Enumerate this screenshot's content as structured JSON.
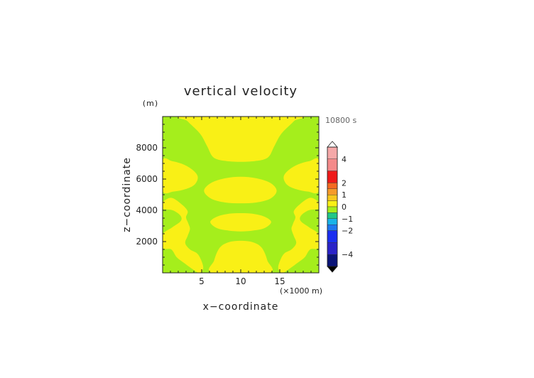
{
  "chart_data": {
    "type": "heatmap",
    "title": "vertical velocity",
    "xlabel": "x−coordinate",
    "ylabel": "z−coordinate",
    "y_unit": "(m)",
    "x_unit": "(×1000 m)",
    "time_label": "10800 s",
    "xlim": [
      0,
      20
    ],
    "ylim": [
      0,
      10000
    ],
    "x_ticks": [
      {
        "value": 5,
        "label": "5"
      },
      {
        "value": 10,
        "label": "10"
      },
      {
        "value": 15,
        "label": "15"
      }
    ],
    "y_ticks": [
      {
        "value": 2000,
        "label": "2000"
      },
      {
        "value": 4000,
        "label": "4000"
      },
      {
        "value": 6000,
        "label": "6000"
      },
      {
        "value": 8000,
        "label": "8000"
      }
    ],
    "colorbar": {
      "labels": [
        {
          "value": 4,
          "label": "4"
        },
        {
          "value": 2,
          "label": "2"
        },
        {
          "value": 1,
          "label": "1"
        },
        {
          "value": 0,
          "label": "0"
        },
        {
          "value": -1,
          "label": "−1"
        },
        {
          "value": -2,
          "label": "−2"
        },
        {
          "value": -4,
          "label": "−4"
        }
      ],
      "bins_top_to_bottom": [
        {
          "from": 4,
          "to": 5,
          "color": "#f5a8a8"
        },
        {
          "from": 3,
          "to": 4,
          "color": "#f48a8a"
        },
        {
          "from": 2,
          "to": 3,
          "color": "#ef1a1a"
        },
        {
          "from": 1.5,
          "to": 2,
          "color": "#f46a22"
        },
        {
          "from": 1,
          "to": 1.5,
          "color": "#f59b2a"
        },
        {
          "from": 0.5,
          "to": 1,
          "color": "#f8c81e"
        },
        {
          "from": 0,
          "to": 0.5,
          "color": "#f9f016"
        },
        {
          "from": -0.5,
          "to": 0,
          "color": "#a5ee1c"
        },
        {
          "from": -1,
          "to": -0.5,
          "color": "#21c787"
        },
        {
          "from": -1.5,
          "to": -1,
          "color": "#19b3e8"
        },
        {
          "from": -2,
          "to": -1.5,
          "color": "#1e78f0"
        },
        {
          "from": -3,
          "to": -2,
          "color": "#1a2ef0"
        },
        {
          "from": -4,
          "to": -3,
          "color": "#2a23c8"
        },
        {
          "from": -5,
          "to": -4,
          "color": "#0a1478"
        }
      ]
    },
    "field": {
      "background_value_range": [
        -0.5,
        0
      ],
      "background_color": "#a5ee1c",
      "positive_region_value_range": [
        0,
        0.5
      ],
      "positive_region_color": "#f9f016",
      "positive_regions": [
        {
          "name": "top-center",
          "x": [
            2.9,
            3.2,
            4.8,
            5.7,
            6.3,
            7.0,
            8.2,
            10.0,
            11.8,
            13.0,
            13.7,
            14.3,
            15.2,
            16.8,
            17.1
          ],
          "z": [
            10000,
            9700,
            8900,
            8100,
            7500,
            7260,
            7150,
            7100,
            7150,
            7260,
            7500,
            8100,
            8900,
            9700,
            10000
          ]
        },
        {
          "name": "left-lobe-6000",
          "x": [
            0,
            1.2,
            2.6,
            3.8,
            4.5,
            4.1,
            2.9,
            1.4,
            0
          ],
          "z": [
            7200,
            7150,
            6950,
            6600,
            6150,
            5650,
            5350,
            5200,
            5250
          ]
        },
        {
          "name": "right-lobe-6000",
          "x": [
            20,
            18.8,
            17.4,
            16.2,
            15.5,
            15.9,
            17.1,
            18.6,
            20
          ],
          "z": [
            7200,
            7150,
            6950,
            6600,
            6150,
            5650,
            5350,
            5200,
            5250
          ]
        },
        {
          "name": "center-lens-5300",
          "x": [
            5.3,
            6.2,
            8.0,
            10.0,
            12.0,
            13.8,
            14.6,
            13.8,
            12.0,
            10.0,
            8.0,
            6.2
          ],
          "z": [
            5250,
            5750,
            6050,
            6150,
            6050,
            5750,
            5250,
            4750,
            4500,
            4450,
            4500,
            4750
          ]
        },
        {
          "name": "center-lens-3200",
          "x": [
            6.1,
            7.0,
            8.5,
            10.0,
            11.5,
            13.0,
            13.9,
            13.0,
            11.5,
            10.0,
            8.5,
            7.0
          ],
          "z": [
            3250,
            3600,
            3780,
            3820,
            3780,
            3600,
            3250,
            2850,
            2700,
            2650,
            2700,
            2850
          ]
        },
        {
          "name": "left-band",
          "x": [
            0,
            1.1,
            2.4,
            3.2,
            3.0,
            3.3,
            3.5,
            3.2,
            2.9,
            3.5,
            4.4,
            4.9,
            5.2,
            4.7,
            3.8,
            2.7,
            1.8,
            1.1,
            0,
            0,
            1.2,
            2.3,
            2.3,
            1.3,
            0
          ],
          "z": [
            4500,
            4800,
            4400,
            3950,
            3550,
            3150,
            2800,
            2350,
            1900,
            1500,
            1250,
            850,
            300,
            0,
            250,
            650,
            1000,
            1500,
            1600,
            2450,
            2900,
            3300,
            3650,
            4000,
            4100
          ]
        },
        {
          "name": "right-band",
          "x": [
            20,
            18.9,
            17.6,
            16.8,
            17.0,
            16.7,
            16.5,
            16.8,
            17.1,
            16.5,
            15.6,
            15.1,
            14.8,
            15.3,
            16.2,
            17.3,
            18.2,
            18.9,
            20,
            20,
            18.8,
            17.7,
            17.7,
            18.7,
            20
          ],
          "z": [
            4500,
            4800,
            4400,
            3950,
            3550,
            3150,
            2800,
            2350,
            1900,
            1500,
            1250,
            850,
            300,
            0,
            250,
            650,
            1000,
            1500,
            1600,
            2450,
            2900,
            3300,
            3650,
            4000,
            4100
          ]
        },
        {
          "name": "bottom-center",
          "x": [
            6.6,
            7.3,
            8.4,
            10.0,
            11.6,
            12.7,
            13.4,
            13.6,
            6.4
          ],
          "z": [
            800,
            1600,
            1950,
            2050,
            1950,
            1600,
            800,
            0,
            0
          ]
        }
      ]
    }
  }
}
